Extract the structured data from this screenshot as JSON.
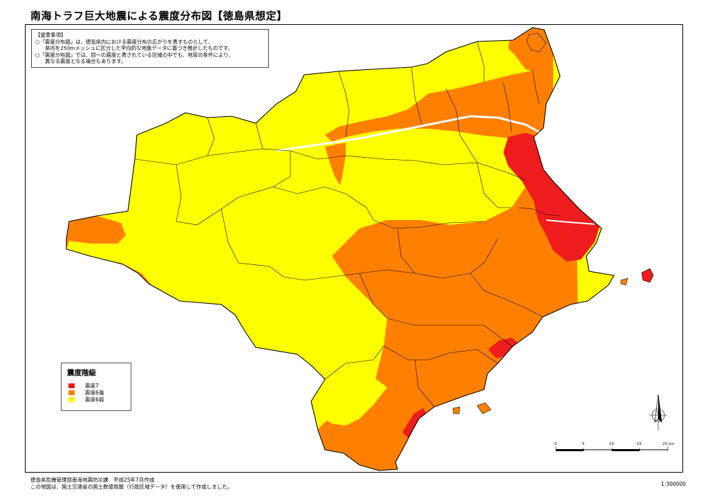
{
  "title": "南海トラフ巨大地震による震度分布図【徳島県想定】",
  "notes": {
    "heading": "【留意事項】",
    "lines": [
      "○「震度分布図」は、徳島県内における震度分布の広がりを表すものとして、",
      "県内を250mメッシュに区分した平均的な地盤データに基づき推計したものです。",
      "○「震度分布図」では、同一の震度と表されている区域の中でも、地質の条件により、",
      "異なる震度となる場合もあります。"
    ]
  },
  "legend": {
    "title": "震度階級",
    "items": [
      {
        "label": "震度7",
        "color": "#ee1c1c"
      },
      {
        "label": "震度6強",
        "color": "#ff8000"
      },
      {
        "label": "震度6弱",
        "color": "#ffff00"
      }
    ]
  },
  "colors": {
    "intensity_7": "#ee1c1c",
    "intensity_6_upper": "#ff8000",
    "intensity_6_lower": "#ffff00",
    "sea": "#ffffff",
    "boundary": "#000000"
  },
  "north_arrow": {
    "label": "N",
    "icon": "north-arrow-icon"
  },
  "scale_bar": {
    "ticks": [
      "0",
      "5",
      "10",
      "15",
      "20"
    ],
    "unit": "km"
  },
  "scale_ratio": "1:300000",
  "footer": {
    "line1": "徳島県危機管理部南海地震防災課　平成25年7月作成",
    "line2": "この地図は、国土交通省の国土数値情報（行政区域データ）を使用して作成しました。"
  }
}
